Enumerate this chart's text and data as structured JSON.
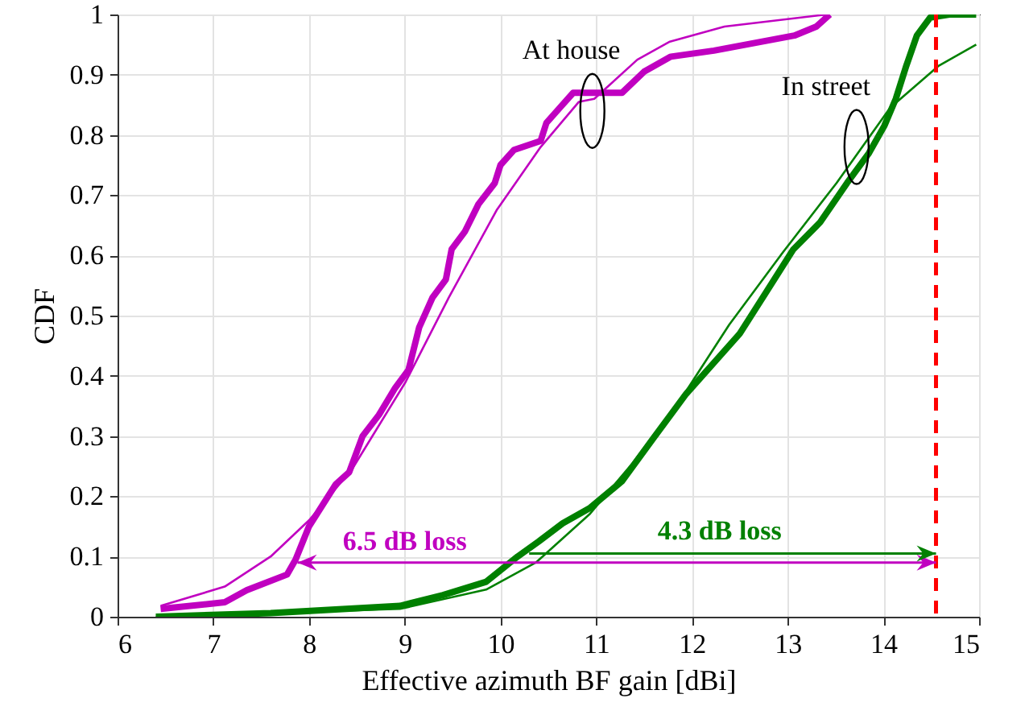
{
  "chart_data": {
    "type": "line",
    "xlabel": "Effective azimuth BF gain [dBi]",
    "ylabel": "CDF",
    "xlim": [
      6,
      15
    ],
    "xticks": [
      6,
      7,
      8,
      9,
      10,
      11,
      12,
      13,
      14,
      15
    ],
    "ylim": [
      0,
      1
    ],
    "yticks": [
      0,
      0.1,
      0.2,
      0.3,
      0.4,
      0.5,
      0.6,
      0.7,
      0.8,
      0.9,
      1
    ],
    "grid": true,
    "line_style": "solid",
    "marker": "none",
    "series": [
      {
        "color": "#c000c0",
        "x": [
          6.45,
          7.12,
          7.35,
          7.77,
          7.86,
          8.0,
          8.28,
          8.42,
          8.56,
          8.73,
          8.9,
          9.04,
          9.15,
          9.29,
          9.43,
          9.49,
          9.63,
          9.77,
          9.94,
          10.0,
          10.14,
          10.42,
          10.48,
          10.62,
          10.76,
          11.07,
          11.27,
          11.5,
          11.78,
          12.23,
          13.07,
          13.3,
          13.44
        ],
        "values": [
          0.013,
          0.024,
          0.044,
          0.07,
          0.095,
          0.15,
          0.22,
          0.24,
          0.3,
          0.335,
          0.38,
          0.41,
          0.48,
          0.53,
          0.56,
          0.61,
          0.64,
          0.685,
          0.72,
          0.75,
          0.775,
          0.79,
          0.82,
          0.845,
          0.87,
          0.87,
          0.87,
          0.905,
          0.93,
          0.94,
          0.965,
          0.98,
          1.0
        ]
      },
      {
        "color": "#c000c0",
        "x": [
          6.45,
          7.12,
          7.6,
          8.0,
          8.45,
          9.01,
          9.46,
          9.96,
          10.42,
          10.82,
          10.98,
          11.43,
          11.77,
          12.34,
          13.41
        ],
        "values": [
          0.018,
          0.05,
          0.1,
          0.16,
          0.245,
          0.39,
          0.53,
          0.675,
          0.78,
          0.855,
          0.86,
          0.925,
          0.955,
          0.98,
          1.0
        ]
      },
      {
        "color": "#008000",
        "x": [
          6.4,
          7.6,
          8.95,
          9.4,
          9.85,
          10.18,
          10.4,
          10.65,
          10.93,
          11.27,
          11.6,
          11.94,
          12.22,
          12.5,
          12.78,
          13.06,
          13.34,
          13.62,
          13.85,
          14.01,
          14.13,
          14.24,
          14.35,
          14.49,
          14.69,
          14.97
        ],
        "values": [
          0.0,
          0.006,
          0.018,
          0.036,
          0.058,
          0.1,
          0.125,
          0.155,
          0.18,
          0.225,
          0.297,
          0.37,
          0.42,
          0.47,
          0.54,
          0.61,
          0.655,
          0.72,
          0.77,
          0.815,
          0.86,
          0.915,
          0.965,
          0.995,
          1.0,
          1.0
        ]
      },
      {
        "color": "#008000",
        "x": [
          6.4,
          8.95,
          9.85,
          10.37,
          10.93,
          11.38,
          11.88,
          12.39,
          12.95,
          13.51,
          14.07,
          14.58,
          14.97
        ],
        "values": [
          0.0,
          0.013,
          0.045,
          0.09,
          0.17,
          0.255,
          0.36,
          0.485,
          0.605,
          0.72,
          0.845,
          0.915,
          0.95
        ]
      }
    ],
    "ref_lines": [
      {
        "axis": "x",
        "value": 14.55,
        "color": "#ff0000",
        "line_style": "dashed"
      }
    ],
    "annotations": [
      "At house",
      "In street",
      "6.5 dB loss",
      "4.3 dB loss"
    ]
  }
}
